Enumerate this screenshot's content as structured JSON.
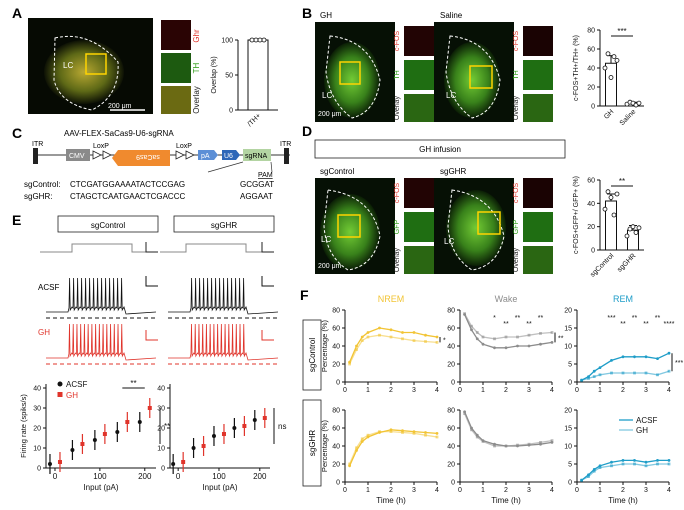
{
  "panel_labels": {
    "a": "A",
    "b": "B",
    "c": "C",
    "d": "D",
    "e": "E",
    "f": "F"
  },
  "micro": {
    "lc": "LC",
    "scale_200": "200 μm",
    "ghr": "Ghr",
    "th": "TH",
    "overlay": "Overlay",
    "gh": "GH",
    "saline": "Saline",
    "cfos": "c-FOS",
    "gfp": "GFP",
    "sgcontrol": "sgControl",
    "sgghr": "sgGHR",
    "gh_infusion": "GH infusion"
  },
  "colors": {
    "acsf": "#111111",
    "gh": "#e0342b",
    "nrem": "#f2c434",
    "wake": "#8c8c8c",
    "rem": "#1e9dc8",
    "bar_ghr": "#e0342b",
    "bar_th": "#58c43a"
  },
  "construct": {
    "title": "AAV-FLEX-SaCas9-U6-sgRNA",
    "itr": "ITR",
    "cmv": "CMV",
    "loxp": "LoxP",
    "sacas9": "saCas9",
    "pa": "pA",
    "u6": "U6",
    "sgrna": "sgRNA",
    "pam": "PAM",
    "sgcontrol_label": "sgControl:",
    "sgcontrol_seq": "CTCGATGGAAAATACTCCGAG",
    "sgcontrol_pam": "GCGGAT",
    "sgghr_label": "sgGHR:",
    "sgghr_seq": "CTAGCTCAATGAACTCGACCC",
    "sgghr_pam": "AGGAAT"
  },
  "ephys": {
    "sgcontrol": "sgControl",
    "sgghr": "sgGHR",
    "acsf": "ACSF",
    "gh": "GH",
    "ns": "ns",
    "sig_inline": "**",
    "sig_side": "**"
  },
  "chart_data": [
    {
      "id": "overlap",
      "type": "bar",
      "categories": [
        "/TH+"
      ],
      "values": [
        100
      ],
      "points": [
        100,
        100,
        100,
        100
      ],
      "ylabel": "Overlap (%)",
      "ylim": [
        0,
        100
      ],
      "yticks": [
        0,
        50,
        100
      ],
      "grid": false
    },
    {
      "id": "cfos_gh_saline",
      "type": "bar",
      "categories": [
        "GH",
        "Saline"
      ],
      "values": [
        45,
        3
      ],
      "errors": [
        8,
        1
      ],
      "points": [
        [
          40,
          55,
          30,
          52,
          48
        ],
        [
          2,
          4,
          3,
          1,
          3
        ]
      ],
      "ylabel": "c-FOS+TH+/TH+ (%)",
      "ylim": [
        0,
        80
      ],
      "yticks": [
        0,
        20,
        40,
        60,
        80
      ],
      "significance": "***"
    },
    {
      "id": "cfos_sgrna",
      "type": "bar",
      "categories": [
        "sgControl",
        "sgGHR"
      ],
      "values": [
        42,
        17
      ],
      "errors": [
        6,
        4
      ],
      "points": [
        [
          35,
          50,
          45,
          30,
          48
        ],
        [
          12,
          18,
          20,
          15,
          19
        ]
      ],
      "ylabel": "c-FOS+GFP+/ GFP+ (%)",
      "ylim": [
        0,
        60
      ],
      "yticks": [
        0,
        20,
        40,
        60
      ],
      "significance": "**"
    },
    {
      "id": "firing_sgcontrol",
      "type": "scatter",
      "xlabel": "Input (pA)",
      "ylabel": "Firing rate (spiks/s)",
      "xticks": [
        0,
        100,
        200
      ],
      "yticks": [
        0,
        10,
        20,
        30,
        40
      ],
      "xlim": [
        -20,
        225
      ],
      "ylim": [
        0,
        42
      ],
      "series": [
        {
          "name": "ACSF",
          "x": [
            0,
            50,
            100,
            150,
            200
          ],
          "values": [
            2,
            9,
            14,
            18,
            23
          ]
        },
        {
          "name": "GH",
          "x": [
            0,
            50,
            100,
            150,
            200
          ],
          "values": [
            3,
            12,
            17,
            23,
            30
          ]
        }
      ]
    },
    {
      "id": "firing_sgghr",
      "type": "scatter",
      "xlabel": "Input (pA)",
      "xticks": [
        0,
        100,
        200
      ],
      "yticks": [
        0,
        10,
        20,
        30,
        40
      ],
      "xlim": [
        -20,
        225
      ],
      "ylim": [
        0,
        42
      ],
      "series": [
        {
          "name": "ACSF",
          "x": [
            0,
            50,
            100,
            150,
            200
          ],
          "values": [
            2,
            10,
            16,
            20,
            24
          ]
        },
        {
          "name": "GH",
          "x": [
            0,
            50,
            100,
            150,
            200
          ],
          "values": [
            3,
            11,
            17,
            21,
            25
          ]
        }
      ]
    },
    {
      "id": "state_sgcontrol_nrem",
      "type": "line",
      "title": "NREM",
      "ylabel": "Percentage (%)",
      "x": [
        0.2,
        0.5,
        0.75,
        1,
        1.5,
        2,
        2.5,
        3,
        3.5,
        4
      ],
      "ylim": [
        0,
        80
      ],
      "yticks": [
        0,
        20,
        40,
        60,
        80
      ],
      "xticks": [
        0,
        1,
        2,
        3,
        4
      ],
      "series": [
        {
          "name": "ACSF",
          "values": [
            22,
            40,
            50,
            55,
            60,
            58,
            55,
            55,
            52,
            50
          ]
        },
        {
          "name": "GH",
          "values": [
            20,
            36,
            46,
            50,
            52,
            50,
            48,
            46,
            45,
            44
          ]
        }
      ],
      "significance": "*"
    },
    {
      "id": "state_sgcontrol_wake",
      "type": "line",
      "title": "Wake",
      "x": [
        0.2,
        0.5,
        0.75,
        1,
        1.5,
        2,
        2.5,
        3,
        3.5,
        4
      ],
      "ylim": [
        0,
        80
      ],
      "yticks": [
        0,
        20,
        40,
        60,
        80
      ],
      "xticks": [
        0,
        1,
        2,
        3,
        4
      ],
      "series": [
        {
          "name": "ACSF",
          "values": [
            75,
            58,
            48,
            42,
            38,
            38,
            40,
            40,
            42,
            44
          ]
        },
        {
          "name": "GH",
          "values": [
            76,
            62,
            55,
            50,
            48,
            50,
            50,
            52,
            54,
            55
          ]
        }
      ],
      "annotations": [
        "*",
        "**",
        "**",
        "**",
        "**"
      ],
      "significance": "**"
    },
    {
      "id": "state_sgcontrol_rem",
      "type": "line",
      "title": "REM",
      "x": [
        0.2,
        0.5,
        0.75,
        1,
        1.5,
        2,
        2.5,
        3,
        3.5,
        4
      ],
      "ylim": [
        0,
        20
      ],
      "yticks": [
        0,
        5,
        10,
        15,
        20
      ],
      "xticks": [
        0,
        1,
        2,
        3,
        4
      ],
      "series": [
        {
          "name": "ACSF",
          "values": [
            0.5,
            1.5,
            3,
            4,
            6,
            7,
            7,
            7,
            6.5,
            8
          ]
        },
        {
          "name": "GH",
          "values": [
            0.5,
            1,
            1.5,
            2,
            2.5,
            2.5,
            2.5,
            2.5,
            2,
            3
          ]
        }
      ],
      "annotations": [
        "***",
        "**",
        "**",
        "**",
        "**",
        "****"
      ],
      "significance": "***"
    },
    {
      "id": "state_sgghr_nrem",
      "type": "line",
      "xlabel": "Time (h)",
      "ylabel": "Percentage (%)",
      "x": [
        0.2,
        0.5,
        0.75,
        1,
        1.5,
        2,
        2.5,
        3,
        3.5,
        4
      ],
      "ylim": [
        0,
        80
      ],
      "yticks": [
        0,
        20,
        40,
        60,
        80
      ],
      "xticks": [
        0,
        1,
        2,
        3,
        4
      ],
      "series": [
        {
          "name": "ACSF",
          "values": [
            18,
            35,
            45,
            50,
            55,
            58,
            57,
            56,
            55,
            54
          ]
        },
        {
          "name": "GH",
          "values": [
            20,
            38,
            48,
            52,
            56,
            56,
            55,
            54,
            52,
            50
          ]
        }
      ]
    },
    {
      "id": "state_sgghr_wake",
      "type": "line",
      "xlabel": "Time (h)",
      "x": [
        0.2,
        0.5,
        0.75,
        1,
        1.5,
        2,
        2.5,
        3,
        3.5,
        4
      ],
      "ylim": [
        0,
        80
      ],
      "yticks": [
        0,
        20,
        40,
        60,
        80
      ],
      "xticks": [
        0,
        1,
        2,
        3,
        4
      ],
      "series": [
        {
          "name": "ACSF",
          "values": [
            78,
            60,
            52,
            46,
            42,
            40,
            40,
            41,
            42,
            44
          ]
        },
        {
          "name": "GH",
          "values": [
            76,
            58,
            50,
            45,
            40,
            40,
            41,
            42,
            44,
            46
          ]
        }
      ]
    },
    {
      "id": "state_sgghr_rem",
      "type": "line",
      "xlabel": "Time (h)",
      "x": [
        0.2,
        0.5,
        0.75,
        1,
        1.5,
        2,
        2.5,
        3,
        3.5,
        4
      ],
      "ylim": [
        0,
        20
      ],
      "yticks": [
        0,
        5,
        10,
        15,
        20
      ],
      "xticks": [
        0,
        1,
        2,
        3,
        4
      ],
      "series": [
        {
          "name": "ACSF",
          "values": [
            0.5,
            2,
            3.5,
            4.5,
            5.5,
            6,
            6,
            5.5,
            6,
            6
          ]
        },
        {
          "name": "GH",
          "values": [
            0.5,
            1.5,
            3,
            4,
            4.5,
            5,
            5,
            4.5,
            5,
            5
          ]
        }
      ],
      "legend": "top-right"
    }
  ],
  "state_labels": {
    "sgcontrol": "sgControl",
    "sgghr": "sgGHR",
    "legend_acsf": "ACSF",
    "legend_gh": "GH"
  }
}
